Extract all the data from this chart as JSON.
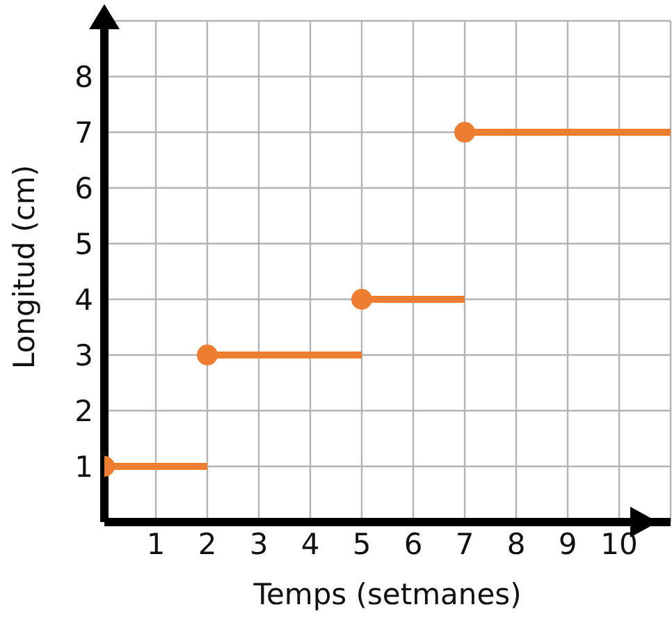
{
  "chart_data": {
    "type": "step",
    "xlabel": "Temps (setmanes)",
    "ylabel": "Longitud (cm)",
    "x": [
      0,
      2,
      5,
      7,
      11
    ],
    "values": [
      1,
      3,
      4,
      7,
      7
    ],
    "color": "#ed7d31",
    "marker": "circle",
    "xlim": [
      0,
      11
    ],
    "xticks": [
      1,
      2,
      3,
      4,
      5,
      6,
      7,
      8,
      9,
      10,
      {
        "value": 11,
        "label": null
      }
    ],
    "ylim": [
      0,
      9
    ],
    "yticks": [
      1,
      2,
      3,
      4,
      5,
      6,
      7,
      8,
      {
        "value": 9,
        "label": null
      }
    ],
    "grid": true
  }
}
